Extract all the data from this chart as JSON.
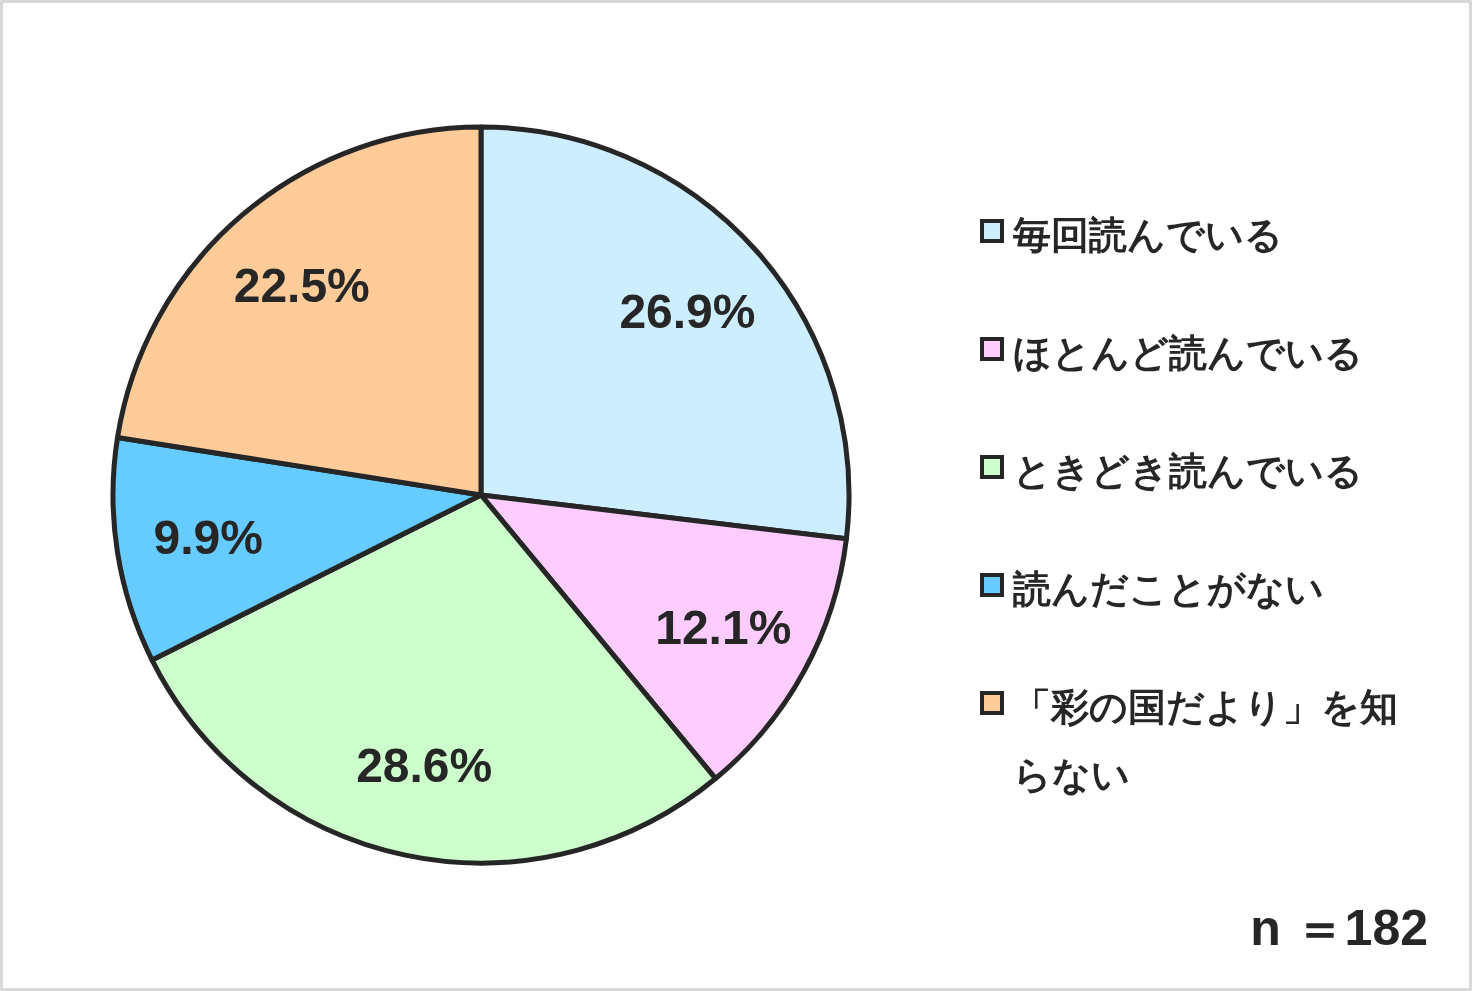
{
  "chart_data": {
    "type": "pie",
    "categories": [
      "毎回読んでいる",
      "ほとんど読んでいる",
      "ときどき読んでいる",
      "読んだことがない",
      "「彩の国だより」を知らない"
    ],
    "values": [
      26.9,
      12.1,
      28.6,
      9.9,
      22.5
    ],
    "colors": [
      "#cceeff",
      "#ffccff",
      "#ccffcc",
      "#66ccff",
      "#ffcc99"
    ],
    "value_labels": [
      "26.9%",
      "12.1%",
      "28.6%",
      "9.9%",
      "22.5%"
    ],
    "legend": "right",
    "annotations": [
      "n ＝182"
    ]
  }
}
